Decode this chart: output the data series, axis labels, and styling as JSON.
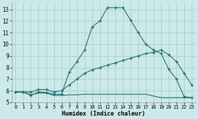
{
  "background_color": "#cce9e9",
  "grid_color": "#aacccc",
  "line_color": "#1a6b6b",
  "xlabel": "Humidex (Indice chaleur)",
  "xlim": [
    -0.5,
    23.5
  ],
  "ylim": [
    5.0,
    13.6
  ],
  "xticks": [
    0,
    1,
    2,
    3,
    4,
    5,
    6,
    7,
    8,
    9,
    10,
    11,
    12,
    13,
    14,
    15,
    16,
    17,
    18,
    19,
    20,
    21,
    22,
    23
  ],
  "yticks": [
    5,
    6,
    7,
    8,
    9,
    10,
    11,
    12,
    13
  ],
  "curve1_x": [
    0,
    1,
    2,
    3,
    4,
    5,
    6,
    7,
    8,
    9,
    10,
    11,
    12,
    13,
    14,
    15,
    16,
    17,
    18,
    19,
    20,
    21,
    22,
    23
  ],
  "curve1_y": [
    5.9,
    5.9,
    5.6,
    5.9,
    5.85,
    5.7,
    5.7,
    7.6,
    8.5,
    9.5,
    11.5,
    12.0,
    13.15,
    13.15,
    13.15,
    12.1,
    11.0,
    10.0,
    9.5,
    9.2,
    7.85,
    7.0,
    5.5,
    5.4
  ],
  "curve2_x": [
    0,
    1,
    2,
    3,
    4,
    5,
    6,
    7,
    8,
    9,
    10,
    11,
    12,
    13,
    14,
    15,
    16,
    17,
    18,
    19,
    20,
    21,
    22,
    23
  ],
  "curve2_y": [
    5.9,
    5.9,
    5.9,
    6.1,
    6.1,
    5.9,
    6.0,
    6.5,
    7.0,
    7.5,
    7.8,
    8.0,
    8.2,
    8.4,
    8.6,
    8.8,
    9.0,
    9.2,
    9.3,
    9.5,
    9.1,
    8.5,
    7.5,
    6.5
  ],
  "curve3_x": [
    0,
    1,
    2,
    3,
    4,
    5,
    6,
    7,
    8,
    9,
    10,
    11,
    12,
    13,
    14,
    15,
    16,
    17,
    18,
    19,
    20,
    21,
    22,
    23
  ],
  "curve3_y": [
    5.9,
    5.9,
    5.65,
    5.8,
    5.8,
    5.6,
    5.6,
    5.65,
    5.65,
    5.7,
    5.7,
    5.7,
    5.7,
    5.7,
    5.7,
    5.7,
    5.7,
    5.7,
    5.55,
    5.4,
    5.4,
    5.4,
    5.4,
    5.4
  ]
}
